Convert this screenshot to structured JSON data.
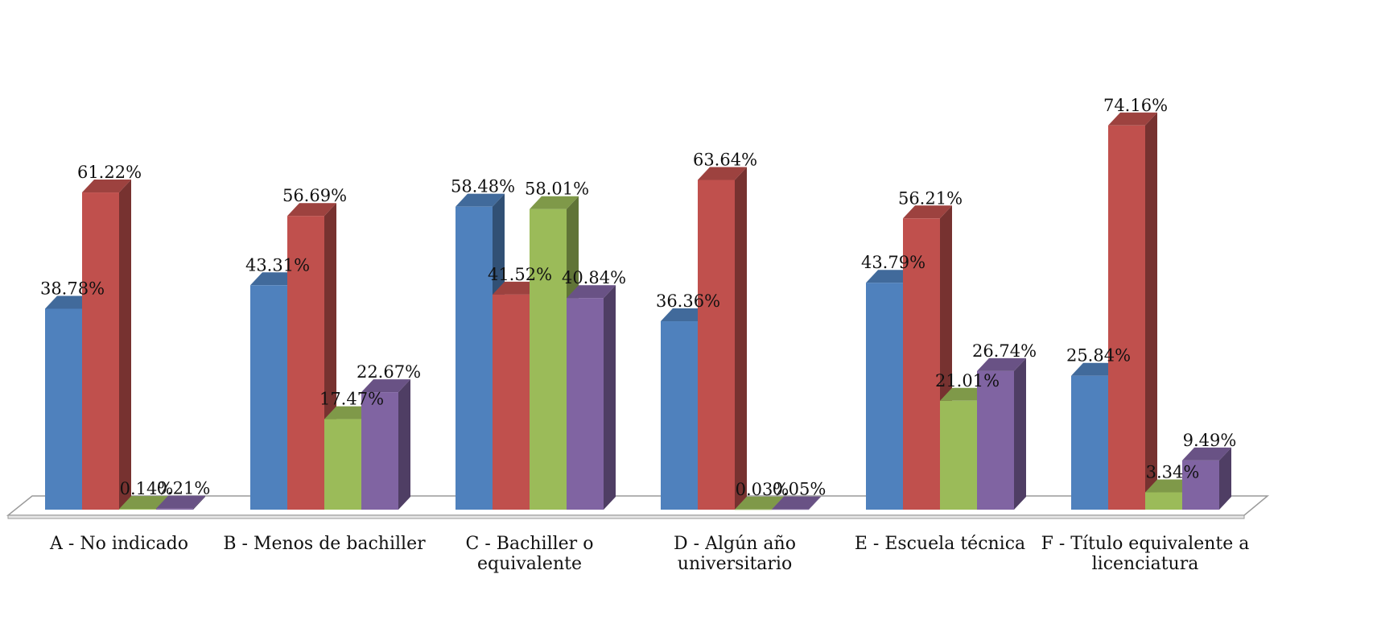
{
  "chart_data": {
    "type": "bar",
    "style": "3d-clustered-column",
    "categories": [
      [
        "A - No indicado"
      ],
      [
        "B - Menos de bachiller"
      ],
      [
        "C - Bachiller o",
        "equivalente"
      ],
      [
        "D - Algún año",
        "universitario"
      ],
      [
        "E - Escuela técnica"
      ],
      [
        "F - Título equivalente a",
        "licenciatura"
      ]
    ],
    "series": [
      {
        "color": "#4F81BD",
        "values": [
          38.78,
          43.31,
          58.48,
          36.36,
          43.79,
          25.84
        ]
      },
      {
        "color": "#C0504D",
        "values": [
          61.22,
          56.69,
          41.52,
          63.64,
          56.21,
          74.16
        ]
      },
      {
        "color": "#9BBB59",
        "values": [
          0.14,
          17.47,
          58.01,
          0.03,
          21.01,
          3.34
        ]
      },
      {
        "color": "#8064A2",
        "values": [
          0.21,
          22.67,
          40.84,
          0.05,
          26.74,
          9.49
        ]
      }
    ],
    "value_labels": [
      [
        "38.78%",
        "61.22%",
        "0.14%",
        "0.21%"
      ],
      [
        "43.31%",
        "56.69%",
        "17.47%",
        "22.67%"
      ],
      [
        "58.48%",
        "41.52%",
        "58.01%",
        "40.84%"
      ],
      [
        "36.36%",
        "63.64%",
        "0.03%",
        "0.05%"
      ],
      [
        "43.79%",
        "56.21%",
        "21.01%",
        "26.74%"
      ],
      [
        "25.84%",
        "74.16%",
        "3.34%",
        "9.49%"
      ]
    ],
    "value_unit": "%",
    "ylim": [
      0,
      80
    ],
    "legend": "none",
    "grid": false
  }
}
